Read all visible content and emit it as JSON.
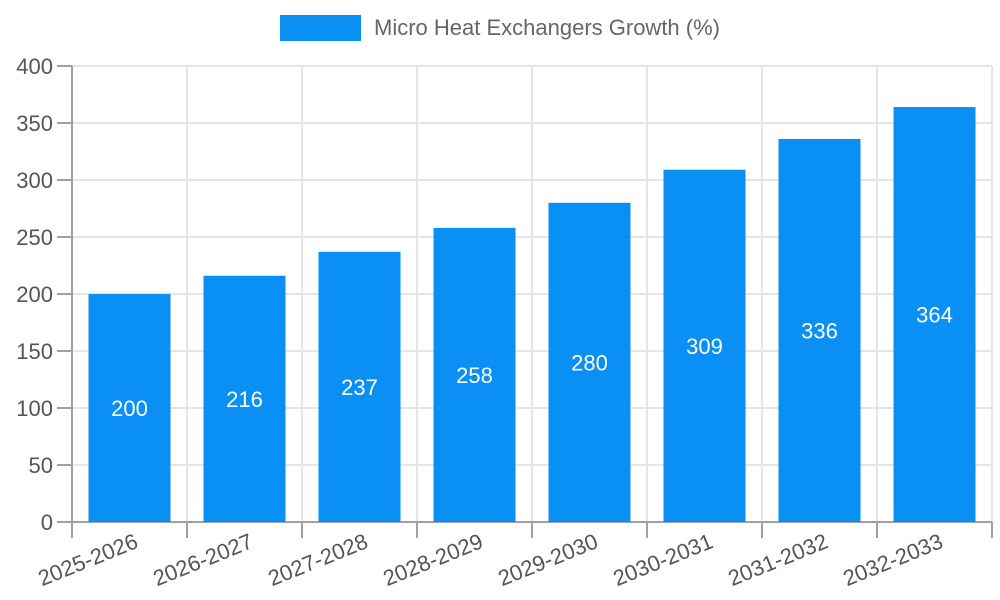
{
  "chart_data": {
    "type": "bar",
    "title": "Micro Heat Exchangers Growth (%)",
    "legend_position": "top-center",
    "categories": [
      "2025-2026",
      "2026-2027",
      "2027-2028",
      "2028-2029",
      "2029-2030",
      "2030-2031",
      "2031-2032",
      "2032-2033"
    ],
    "series": [
      {
        "name": "Micro Heat Exchangers Growth (%)",
        "values": [
          200,
          216,
          237,
          258,
          280,
          309,
          336,
          364
        ]
      }
    ],
    "value_labels_inside_bars": true,
    "xlabel": "",
    "ylabel": "",
    "ylim": [
      0,
      400
    ],
    "ytick_step": 50,
    "grid": true,
    "x_label_rotation_deg": -22,
    "colors": {
      "bar": "#0a8ff5",
      "grid": "#e5e5e5",
      "axis": "#a0a0a0",
      "tick_text": "#555555",
      "legend_text": "#666666",
      "value_label": "#ffffff",
      "background": "#ffffff"
    }
  }
}
